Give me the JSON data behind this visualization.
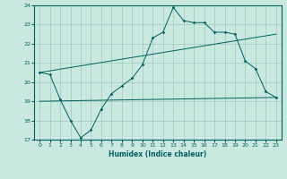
{
  "xlabel": "Humidex (Indice chaleur)",
  "xlim": [
    -0.5,
    23.5
  ],
  "ylim": [
    17,
    24
  ],
  "yticks": [
    17,
    18,
    19,
    20,
    21,
    22,
    23,
    24
  ],
  "xticks": [
    0,
    1,
    2,
    3,
    4,
    5,
    6,
    7,
    8,
    9,
    10,
    11,
    12,
    13,
    14,
    15,
    16,
    17,
    18,
    19,
    20,
    21,
    22,
    23
  ],
  "background_color": "#c8e8e0",
  "grid_color": "#a0c8c0",
  "line_color": "#006060",
  "line1_x": [
    0,
    1,
    2,
    3,
    4,
    5,
    6,
    7,
    8,
    9,
    10,
    11,
    12,
    13,
    14,
    15,
    16,
    17,
    18,
    19,
    20,
    21,
    22,
    23
  ],
  "line1_y": [
    20.5,
    20.4,
    19.1,
    18.0,
    17.1,
    17.5,
    18.6,
    19.4,
    19.8,
    20.2,
    20.9,
    22.3,
    22.6,
    23.9,
    23.2,
    23.1,
    23.1,
    22.6,
    22.6,
    22.5,
    21.1,
    20.7,
    19.5,
    19.2
  ],
  "line3_x": [
    0,
    23
  ],
  "line3_y": [
    20.5,
    22.5
  ],
  "line4_x": [
    0,
    23
  ],
  "line4_y": [
    19.0,
    19.2
  ]
}
